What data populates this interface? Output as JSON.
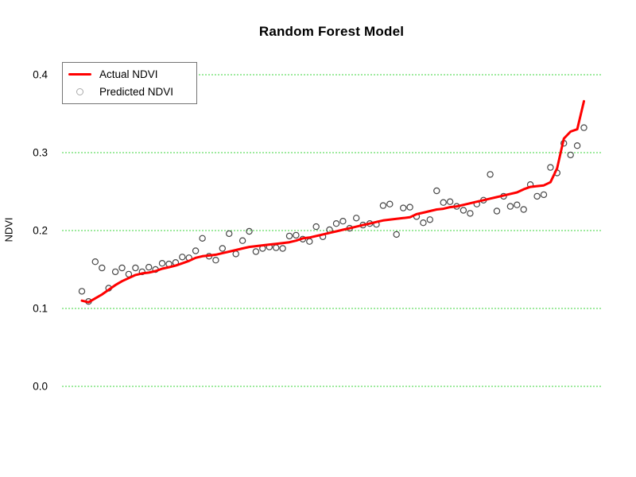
{
  "title": "Random Forest Model",
  "y_axis": {
    "label": "NDVI",
    "tick_labels": [
      "0.0",
      "0.1",
      "0.2",
      "0.3",
      "0.4"
    ]
  },
  "x_axis": {
    "label": "",
    "tick_labels": [],
    "visible": false
  },
  "legend": {
    "items": [
      {
        "label": "Actual NDVI",
        "marker": "line",
        "color": "#FF0000"
      },
      {
        "label": "Predicted NDVI",
        "marker": "open-circle",
        "color": "#AAAAAA"
      }
    ]
  },
  "colors": {
    "actual_line": "#FF0000",
    "predicted_point": "#474747",
    "gridline": "#3CD53C",
    "legend_border": "#737373",
    "text": "#000000",
    "background": "#FFFFFF"
  },
  "chart_data": {
    "type": "line",
    "title": "Random Forest Model",
    "xlabel": "",
    "ylabel": "NDVI",
    "x": "observation index (1-76, sorted by actual NDVI)",
    "n_points": 76,
    "ylim": [
      -0.01,
      0.42
    ],
    "yticks": [
      0.0,
      0.1,
      0.2,
      0.3,
      0.4
    ],
    "grid": "horizontal dashed green lines at each y tick",
    "legend_position": "top-left",
    "series": [
      {
        "name": "Actual NDVI",
        "type": "line",
        "color": "#FF0000",
        "values": [
          0.11,
          0.108,
          0.113,
          0.118,
          0.124,
          0.13,
          0.135,
          0.139,
          0.143,
          0.145,
          0.146,
          0.148,
          0.151,
          0.153,
          0.155,
          0.158,
          0.161,
          0.165,
          0.167,
          0.168,
          0.169,
          0.171,
          0.173,
          0.175,
          0.177,
          0.179,
          0.18,
          0.181,
          0.182,
          0.183,
          0.184,
          0.185,
          0.187,
          0.19,
          0.191,
          0.193,
          0.195,
          0.197,
          0.199,
          0.201,
          0.203,
          0.205,
          0.207,
          0.209,
          0.211,
          0.213,
          0.214,
          0.215,
          0.216,
          0.217,
          0.221,
          0.223,
          0.225,
          0.227,
          0.228,
          0.23,
          0.231,
          0.233,
          0.235,
          0.237,
          0.239,
          0.241,
          0.243,
          0.245,
          0.247,
          0.249,
          0.253,
          0.256,
          0.257,
          0.258,
          0.262,
          0.28,
          0.318,
          0.327,
          0.33,
          0.366
        ]
      },
      {
        "name": "Predicted NDVI",
        "type": "scatter",
        "marker": "open-circle",
        "color": "#474747",
        "values": [
          0.122,
          0.109,
          0.16,
          0.152,
          0.126,
          0.147,
          0.152,
          0.144,
          0.152,
          0.147,
          0.153,
          0.15,
          0.158,
          0.157,
          0.159,
          0.166,
          0.165,
          0.174,
          0.19,
          0.167,
          0.162,
          0.177,
          0.196,
          0.17,
          0.187,
          0.199,
          0.173,
          0.177,
          0.179,
          0.178,
          0.177,
          0.193,
          0.194,
          0.189,
          0.186,
          0.205,
          0.192,
          0.201,
          0.209,
          0.212,
          0.203,
          0.216,
          0.207,
          0.209,
          0.208,
          0.232,
          0.234,
          0.195,
          0.229,
          0.23,
          0.218,
          0.21,
          0.214,
          0.251,
          0.236,
          0.237,
          0.231,
          0.226,
          0.222,
          0.234,
          0.239,
          0.272,
          0.225,
          0.244,
          0.231,
          0.233,
          0.227,
          0.259,
          0.244,
          0.246,
          0.281,
          0.274,
          0.312,
          0.297,
          0.309,
          0.332
        ]
      }
    ]
  }
}
